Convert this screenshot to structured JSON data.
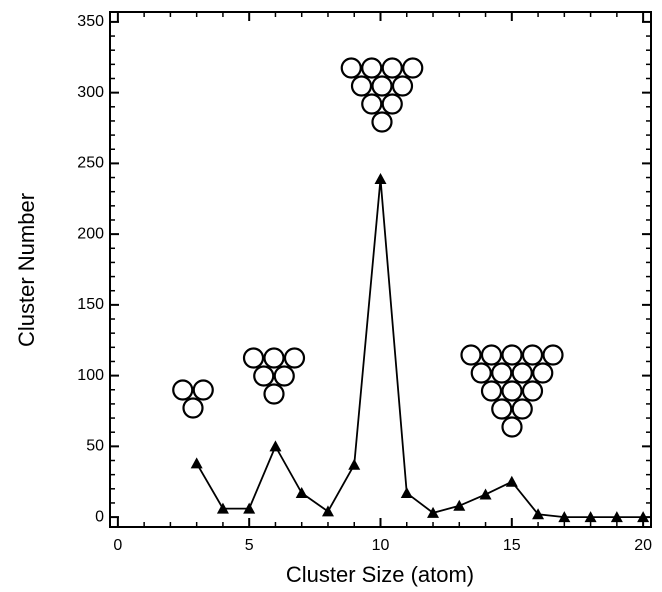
{
  "chart_data": {
    "type": "line",
    "x_label": "Cluster Size (atom)",
    "y_label": "Cluster Number",
    "x": [
      3,
      4,
      5,
      6,
      7,
      8,
      9,
      10,
      11,
      12,
      13,
      14,
      15,
      16,
      17,
      18,
      19,
      20
    ],
    "values": [
      38,
      6,
      6,
      50,
      17,
      4,
      37,
      239,
      17,
      3,
      8,
      16,
      25,
      2,
      0,
      0,
      0,
      0
    ],
    "color": "#000000",
    "xlim": [
      -0.3,
      20.3
    ],
    "xticks": [
      0,
      5,
      10,
      15,
      20
    ],
    "ylim": [
      -7,
      357
    ],
    "yticks": [
      0,
      50,
      100,
      150,
      200,
      250,
      300,
      350
    ]
  }
}
